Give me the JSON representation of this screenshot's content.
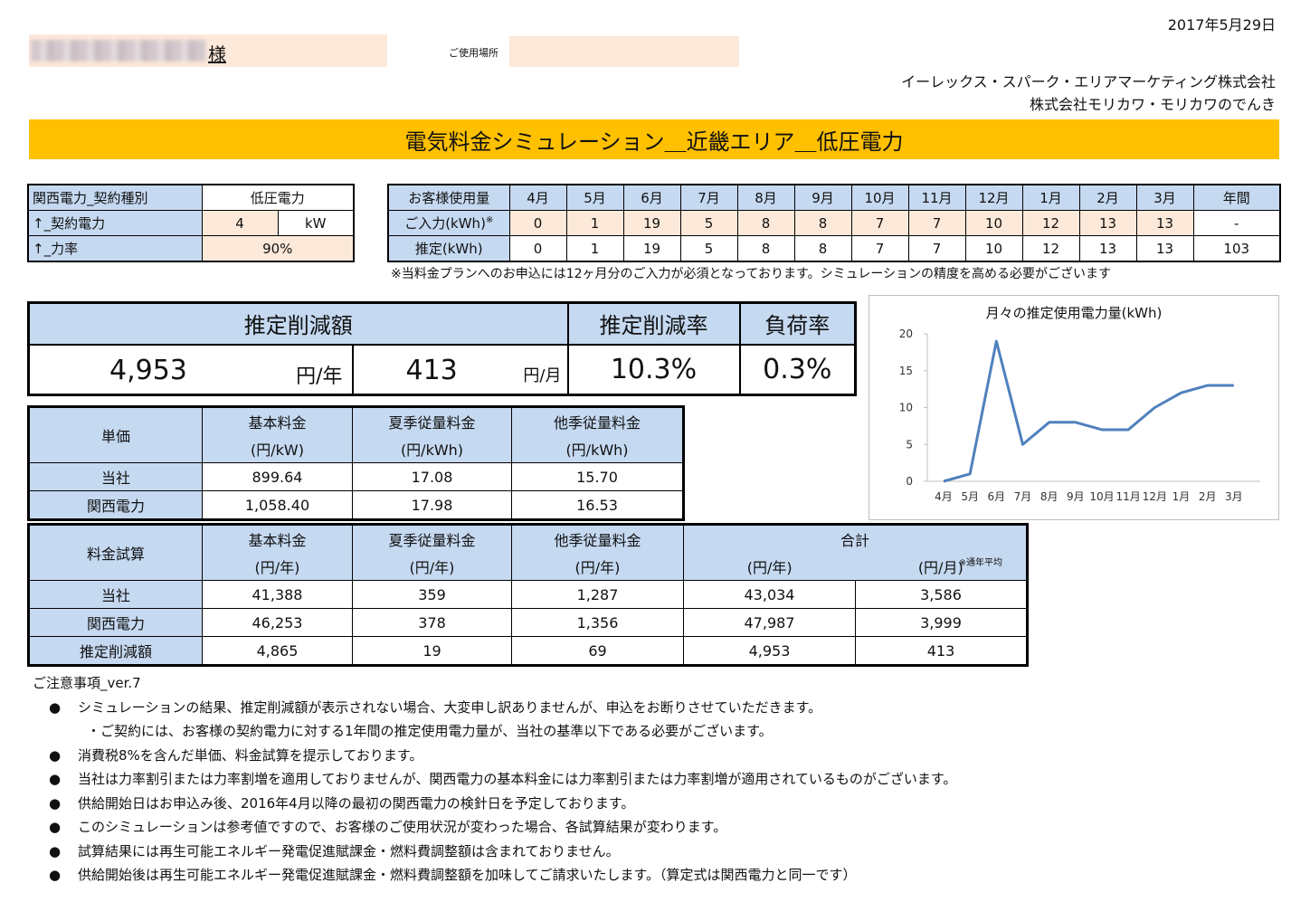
{
  "header": {
    "date": "2017年5月29日",
    "customer_suffix": "様",
    "place_label": "ご使用場所",
    "company1": "イーレックス・スパーク・エリアマーケティング株式会社",
    "company2": "株式会社モリカワ・モリカワのでんき",
    "title": "電気料金シミュレーション＿近畿エリア＿低圧電力"
  },
  "contract": {
    "type_label": "関西電力_契約種別",
    "type_value": "低圧電力",
    "power_label": "↑_契約電力",
    "power_value": "4",
    "power_unit": "kW",
    "pf_label": "↑_力率",
    "pf_value": "90%"
  },
  "usage": {
    "header_label": "お客様使用量",
    "months": [
      "4月",
      "5月",
      "6月",
      "7月",
      "8月",
      "9月",
      "10月",
      "11月",
      "12月",
      "1月",
      "2月",
      "3月"
    ],
    "annual_label": "年間",
    "input_label": "ご入力(kWh)",
    "input_mark": "※",
    "input_values": [
      "0",
      "1",
      "19",
      "5",
      "8",
      "8",
      "7",
      "7",
      "10",
      "12",
      "13",
      "13"
    ],
    "input_annual": "-",
    "est_label": "推定(kWh)",
    "est_values": [
      "0",
      "1",
      "19",
      "5",
      "8",
      "8",
      "7",
      "7",
      "10",
      "12",
      "13",
      "13"
    ],
    "est_annual": "103",
    "note": "※当料金プランへのお申込には12ヶ月分のご入力が必須となっております。シミュレーションの精度を高める必要がございます"
  },
  "summary": {
    "reduction_label": "推定削減額",
    "rate_label": "推定削減率",
    "load_label": "負荷率",
    "year_value": "4,953",
    "year_unit": "円/年",
    "month_value": "413",
    "month_unit": "円/月",
    "rate_value": "10.3%",
    "load_value": "0.3%"
  },
  "price": {
    "label": "単価",
    "cols": [
      {
        "name": "基本料金",
        "unit": "(円/kW)"
      },
      {
        "name": "夏季従量料金",
        "unit": "(円/kWh)"
      },
      {
        "name": "他季従量料金",
        "unit": "(円/kWh)"
      }
    ],
    "rows": [
      {
        "label": "当社",
        "values": [
          "899.64",
          "17.08",
          "15.70"
        ]
      },
      {
        "label": "関西電力",
        "values": [
          "1,058.40",
          "17.98",
          "16.53"
        ]
      }
    ]
  },
  "calc": {
    "label": "料金試算",
    "cols": [
      {
        "name": "基本料金",
        "unit": "(円/年)"
      },
      {
        "name": "夏季従量料金",
        "unit": "(円/年)"
      },
      {
        "name": "他季従量料金",
        "unit": "(円/年)"
      }
    ],
    "total_label": "合計",
    "total_year_unit": "(円/年)",
    "total_month_unit": "(円/月)",
    "total_month_note": "※通年平均",
    "rows": [
      {
        "label": "当社",
        "values": [
          "41,388",
          "359",
          "1,287",
          "43,034",
          "3,586"
        ]
      },
      {
        "label": "関西電力",
        "values": [
          "46,253",
          "378",
          "1,356",
          "47,987",
          "3,999"
        ]
      },
      {
        "label": "推定削減額",
        "values": [
          "4,865",
          "19",
          "69",
          "4,953",
          "413"
        ]
      }
    ]
  },
  "notes": {
    "title": "ご注意事項_ver.7",
    "bullet": "●",
    "items": [
      "シミュレーションの結果、推定削減額が表示されない場合、大変申し訳ありませんが、申込をお断りさせていただきます。",
      "・ご契約には、お客様の契約電力に対する1年間の推定使用電力量が、当社の基準以下である必要がございます。",
      "消費税8%を含んだ単価、料金試算を提示しております。",
      "当社は力率割引または力率割増を適用しておりませんが、関西電力の基本料金には力率割引または力率割増が適用されているものがございます。",
      "供給開始日はお申込み後、2016年4月以降の最初の関西電力の検針日を予定しております。",
      "このシミュレーションは参考値ですので、お客様のご使用状況が変わった場合、各試算結果が変わります。",
      "試算結果には再生可能エネルギー発電促進賦課金・燃料費調整額は含まれておりません。",
      "供給開始後は再生可能エネルギー発電促進賦課金・燃料費調整額を加味してご請求いたします。（算定式は関西電力と同一です）"
    ]
  },
  "chart_data": {
    "type": "line",
    "title": "月々の推定使用電力量(kWh)",
    "categories": [
      "4月",
      "5月",
      "6月",
      "7月",
      "8月",
      "9月",
      "10月",
      "11月",
      "12月",
      "1月",
      "2月",
      "3月"
    ],
    "series": [
      {
        "values": [
          0,
          1,
          19,
          5,
          8,
          8,
          7,
          7,
          10,
          12,
          13,
          13
        ]
      }
    ],
    "yticks": [
      "0",
      "5",
      "10",
      "15",
      "20"
    ],
    "ylim": [
      0,
      20
    ],
    "color": "#4f81bd",
    "grid": false,
    "legend": "none"
  }
}
